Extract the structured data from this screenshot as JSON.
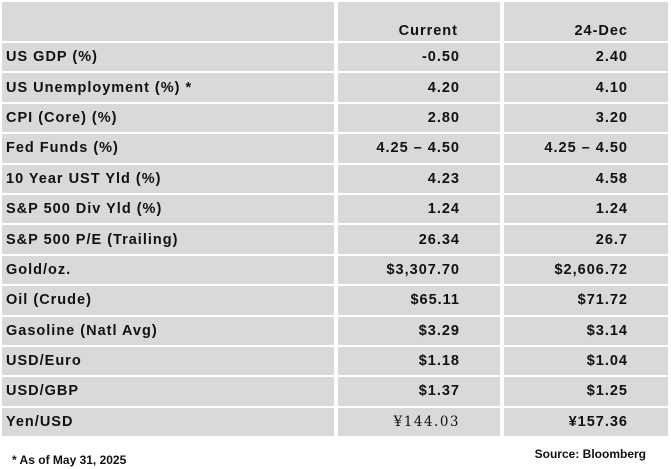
{
  "header": {
    "label": "",
    "current": "Current",
    "previous": "24-Dec"
  },
  "rows": [
    {
      "label": "US GDP (%)",
      "current": "-0.50",
      "previous": "2.40"
    },
    {
      "label": "US Unemployment (%) *",
      "current": "4.20",
      "previous": "4.10"
    },
    {
      "label": "CPI (Core) (%)",
      "current": "2.80",
      "previous": "3.20"
    },
    {
      "label": "Fed Funds (%)",
      "current": "4.25 – 4.50",
      "previous": "4.25 – 4.50"
    },
    {
      "label": "10 Year UST Yld (%)",
      "current": "4.23",
      "previous": "4.58"
    },
    {
      "label": "S&P 500 Div Yld (%)",
      "current": "1.24",
      "previous": "1.24"
    },
    {
      "label": "S&P 500 P/E (Trailing)",
      "current": "26.34",
      "previous": "26.7"
    },
    {
      "label": "Gold/oz.",
      "current": "$3,307.70",
      "previous": "$2,606.72"
    },
    {
      "label": "Oil (Crude)",
      "current": "$65.11",
      "previous": "$71.72"
    },
    {
      "label": "Gasoline (Natl Avg)",
      "current": "$3.29",
      "previous": "$3.14"
    },
    {
      "label": "USD/Euro",
      "current": "$1.18",
      "previous": "$1.04"
    },
    {
      "label": "USD/GBP",
      "current": "$1.37",
      "previous": "$1.25"
    },
    {
      "label": "Yen/USD",
      "current": "¥144.03",
      "previous": "¥157.36"
    }
  ],
  "footer": {
    "footnote": "* As of May 31, 2025",
    "source": "Source: Bloomberg"
  }
}
